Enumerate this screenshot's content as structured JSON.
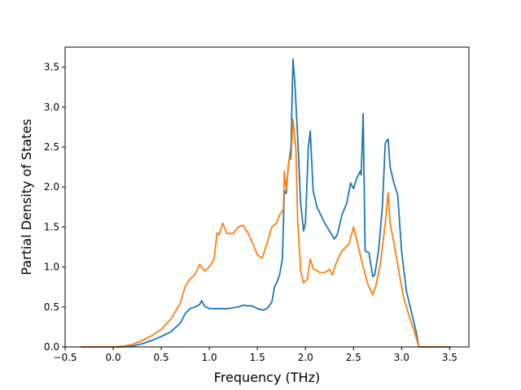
{
  "chart_data": {
    "type": "line",
    "xlabel": "Frequency (THz)",
    "ylabel": "Partial Density of States",
    "xlim": [
      -0.5,
      3.7
    ],
    "ylim": [
      0.0,
      3.75
    ],
    "xticks": [
      -0.5,
      0.0,
      0.5,
      1.0,
      1.5,
      2.0,
      2.5,
      3.0,
      3.5
    ],
    "xtick_labels": [
      "−0.5",
      "0.0",
      "0.5",
      "1.0",
      "1.5",
      "2.0",
      "2.5",
      "3.0",
      "3.5"
    ],
    "yticks": [
      0.0,
      0.5,
      1.0,
      1.5,
      2.0,
      2.5,
      3.0,
      3.5
    ],
    "ytick_labels": [
      "0.0",
      "0.5",
      "1.0",
      "1.5",
      "2.0",
      "2.5",
      "3.0",
      "3.5"
    ],
    "grid": false,
    "legend": false,
    "series": [
      {
        "color": "#1f77b4",
        "points": [
          [
            -0.33,
            0.0
          ],
          [
            0.0,
            0.0
          ],
          [
            0.1,
            0.0
          ],
          [
            0.2,
            0.01
          ],
          [
            0.3,
            0.04
          ],
          [
            0.4,
            0.08
          ],
          [
            0.5,
            0.13
          ],
          [
            0.6,
            0.19
          ],
          [
            0.7,
            0.3
          ],
          [
            0.75,
            0.42
          ],
          [
            0.8,
            0.48
          ],
          [
            0.85,
            0.5
          ],
          [
            0.9,
            0.53
          ],
          [
            0.92,
            0.58
          ],
          [
            0.95,
            0.51
          ],
          [
            1.0,
            0.48
          ],
          [
            1.1,
            0.48
          ],
          [
            1.2,
            0.48
          ],
          [
            1.3,
            0.5
          ],
          [
            1.35,
            0.52
          ],
          [
            1.45,
            0.51
          ],
          [
            1.5,
            0.48
          ],
          [
            1.56,
            0.46
          ],
          [
            1.6,
            0.48
          ],
          [
            1.65,
            0.56
          ],
          [
            1.68,
            0.76
          ],
          [
            1.7,
            0.8
          ],
          [
            1.73,
            0.9
          ],
          [
            1.76,
            1.1
          ],
          [
            1.78,
            1.95
          ],
          [
            1.8,
            1.92
          ],
          [
            1.82,
            2.25
          ],
          [
            1.85,
            2.5
          ],
          [
            1.87,
            3.6
          ],
          [
            1.89,
            3.3
          ],
          [
            1.92,
            2.6
          ],
          [
            1.95,
            1.8
          ],
          [
            1.98,
            1.45
          ],
          [
            2.0,
            1.55
          ],
          [
            2.03,
            2.5
          ],
          [
            2.05,
            2.7
          ],
          [
            2.08,
            1.95
          ],
          [
            2.12,
            1.75
          ],
          [
            2.18,
            1.6
          ],
          [
            2.2,
            1.55
          ],
          [
            2.25,
            1.45
          ],
          [
            2.3,
            1.35
          ],
          [
            2.33,
            1.4
          ],
          [
            2.38,
            1.65
          ],
          [
            2.43,
            1.8
          ],
          [
            2.47,
            2.05
          ],
          [
            2.5,
            1.98
          ],
          [
            2.53,
            2.1
          ],
          [
            2.57,
            2.2
          ],
          [
            2.58,
            2.15
          ],
          [
            2.6,
            2.92
          ],
          [
            2.62,
            1.2
          ],
          [
            2.66,
            1.18
          ],
          [
            2.7,
            0.88
          ],
          [
            2.72,
            0.9
          ],
          [
            2.76,
            1.2
          ],
          [
            2.8,
            1.75
          ],
          [
            2.83,
            2.55
          ],
          [
            2.86,
            2.6
          ],
          [
            2.88,
            2.25
          ],
          [
            2.92,
            2.05
          ],
          [
            2.96,
            1.9
          ],
          [
            3.0,
            1.2
          ],
          [
            3.05,
            0.7
          ],
          [
            3.1,
            0.45
          ],
          [
            3.15,
            0.2
          ],
          [
            3.18,
            0.0
          ],
          [
            3.3,
            0.0
          ],
          [
            3.5,
            0.0
          ]
        ]
      },
      {
        "color": "#ff7f0e",
        "points": [
          [
            -0.33,
            0.0
          ],
          [
            0.0,
            0.0
          ],
          [
            0.1,
            0.01
          ],
          [
            0.2,
            0.03
          ],
          [
            0.3,
            0.08
          ],
          [
            0.4,
            0.14
          ],
          [
            0.5,
            0.22
          ],
          [
            0.6,
            0.35
          ],
          [
            0.7,
            0.55
          ],
          [
            0.75,
            0.76
          ],
          [
            0.8,
            0.85
          ],
          [
            0.85,
            0.9
          ],
          [
            0.9,
            1.03
          ],
          [
            0.95,
            0.95
          ],
          [
            1.0,
            1.0
          ],
          [
            1.05,
            1.1
          ],
          [
            1.08,
            1.43
          ],
          [
            1.1,
            1.4
          ],
          [
            1.14,
            1.55
          ],
          [
            1.18,
            1.42
          ],
          [
            1.25,
            1.42
          ],
          [
            1.3,
            1.5
          ],
          [
            1.35,
            1.52
          ],
          [
            1.4,
            1.43
          ],
          [
            1.45,
            1.3
          ],
          [
            1.5,
            1.15
          ],
          [
            1.55,
            1.11
          ],
          [
            1.6,
            1.3
          ],
          [
            1.65,
            1.5
          ],
          [
            1.7,
            1.55
          ],
          [
            1.73,
            1.65
          ],
          [
            1.77,
            1.72
          ],
          [
            1.78,
            2.2
          ],
          [
            1.8,
            1.98
          ],
          [
            1.83,
            2.35
          ],
          [
            1.85,
            2.35
          ],
          [
            1.87,
            2.85
          ],
          [
            1.9,
            2.5
          ],
          [
            1.92,
            1.55
          ],
          [
            1.95,
            0.95
          ],
          [
            1.98,
            0.8
          ],
          [
            2.02,
            0.85
          ],
          [
            2.05,
            1.1
          ],
          [
            2.08,
            0.98
          ],
          [
            2.15,
            0.93
          ],
          [
            2.2,
            0.93
          ],
          [
            2.25,
            0.97
          ],
          [
            2.28,
            0.9
          ],
          [
            2.32,
            1.05
          ],
          [
            2.38,
            1.2
          ],
          [
            2.42,
            1.25
          ],
          [
            2.45,
            1.28
          ],
          [
            2.5,
            1.5
          ],
          [
            2.55,
            1.25
          ],
          [
            2.6,
            1.0
          ],
          [
            2.65,
            0.78
          ],
          [
            2.7,
            0.65
          ],
          [
            2.73,
            0.75
          ],
          [
            2.78,
            1.05
          ],
          [
            2.83,
            1.55
          ],
          [
            2.86,
            1.93
          ],
          [
            2.88,
            1.55
          ],
          [
            2.92,
            1.3
          ],
          [
            2.97,
            0.95
          ],
          [
            3.02,
            0.62
          ],
          [
            3.08,
            0.38
          ],
          [
            3.13,
            0.2
          ],
          [
            3.18,
            0.0
          ],
          [
            3.3,
            0.0
          ],
          [
            3.5,
            0.0
          ]
        ]
      }
    ]
  }
}
